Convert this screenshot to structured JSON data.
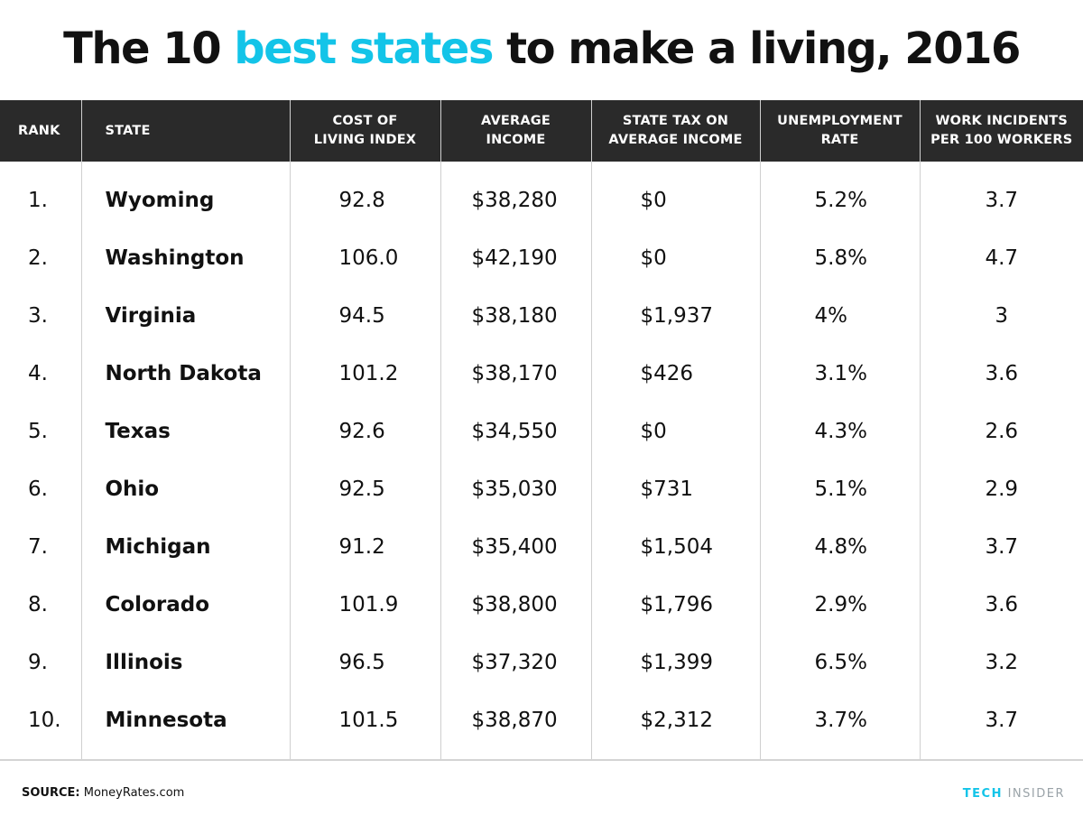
{
  "title": {
    "before": "The 10 ",
    "highlight": "best states",
    "after": " to make a living, 2016"
  },
  "chart_data": {
    "type": "table",
    "title": "The 10 best states to make a living, 2016",
    "columns": [
      "RANK",
      "STATE",
      "COST OF LIVING INDEX",
      "AVERAGE INCOME",
      "STATE TAX ON AVERAGE INCOME",
      "UNEMPLOYMENT RATE",
      "WORK INCIDENTS PER 100 WORKERS"
    ],
    "column_labels": [
      "RANK",
      "STATE",
      "COST OF\nLIVING INDEX",
      "AVERAGE\nINCOME",
      "STATE TAX ON\nAVERAGE INCOME",
      "UNEMPLOYMENT\nRATE",
      "WORK INCIDENTS\nPER 100 WORKERS"
    ],
    "rows": [
      [
        "1.",
        "Wyoming",
        "92.8",
        "$38,280",
        "$0",
        "5.2%",
        "3.7"
      ],
      [
        "2.",
        "Washington",
        "106.0",
        "$42,190",
        "$0",
        "5.8%",
        "4.7"
      ],
      [
        "3.",
        "Virginia",
        "94.5",
        "$38,180",
        "$1,937",
        "4%",
        "3"
      ],
      [
        "4.",
        "North Dakota",
        "101.2",
        "$38,170",
        "$426",
        "3.1%",
        "3.6"
      ],
      [
        "5.",
        "Texas",
        "92.6",
        "$34,550",
        "$0",
        "4.3%",
        "2.6"
      ],
      [
        "6.",
        "Ohio",
        "92.5",
        "$35,030",
        "$731",
        "5.1%",
        "2.9"
      ],
      [
        "7.",
        "Michigan",
        "91.2",
        "$35,400",
        "$1,504",
        "4.8%",
        "3.7"
      ],
      [
        "8.",
        "Colorado",
        "101.9",
        "$38,800",
        "$1,796",
        "2.9%",
        "3.6"
      ],
      [
        "9.",
        "Illinois",
        "96.5",
        "$37,320",
        "$1,399",
        "6.5%",
        "3.2"
      ],
      [
        "10.",
        "Minnesota",
        "101.5",
        "$38,870",
        "$2,312",
        "3.7%",
        "3.7"
      ]
    ]
  },
  "footer": {
    "source_label": "SOURCE:",
    "source_text": " MoneyRates.com",
    "brand_tech": "TECH",
    "brand_insider": "INSIDER"
  },
  "colors": {
    "accent": "#13c4e8",
    "header_bg": "#2a2a2a",
    "text": "#111111",
    "grid": "#cfcfcf"
  }
}
